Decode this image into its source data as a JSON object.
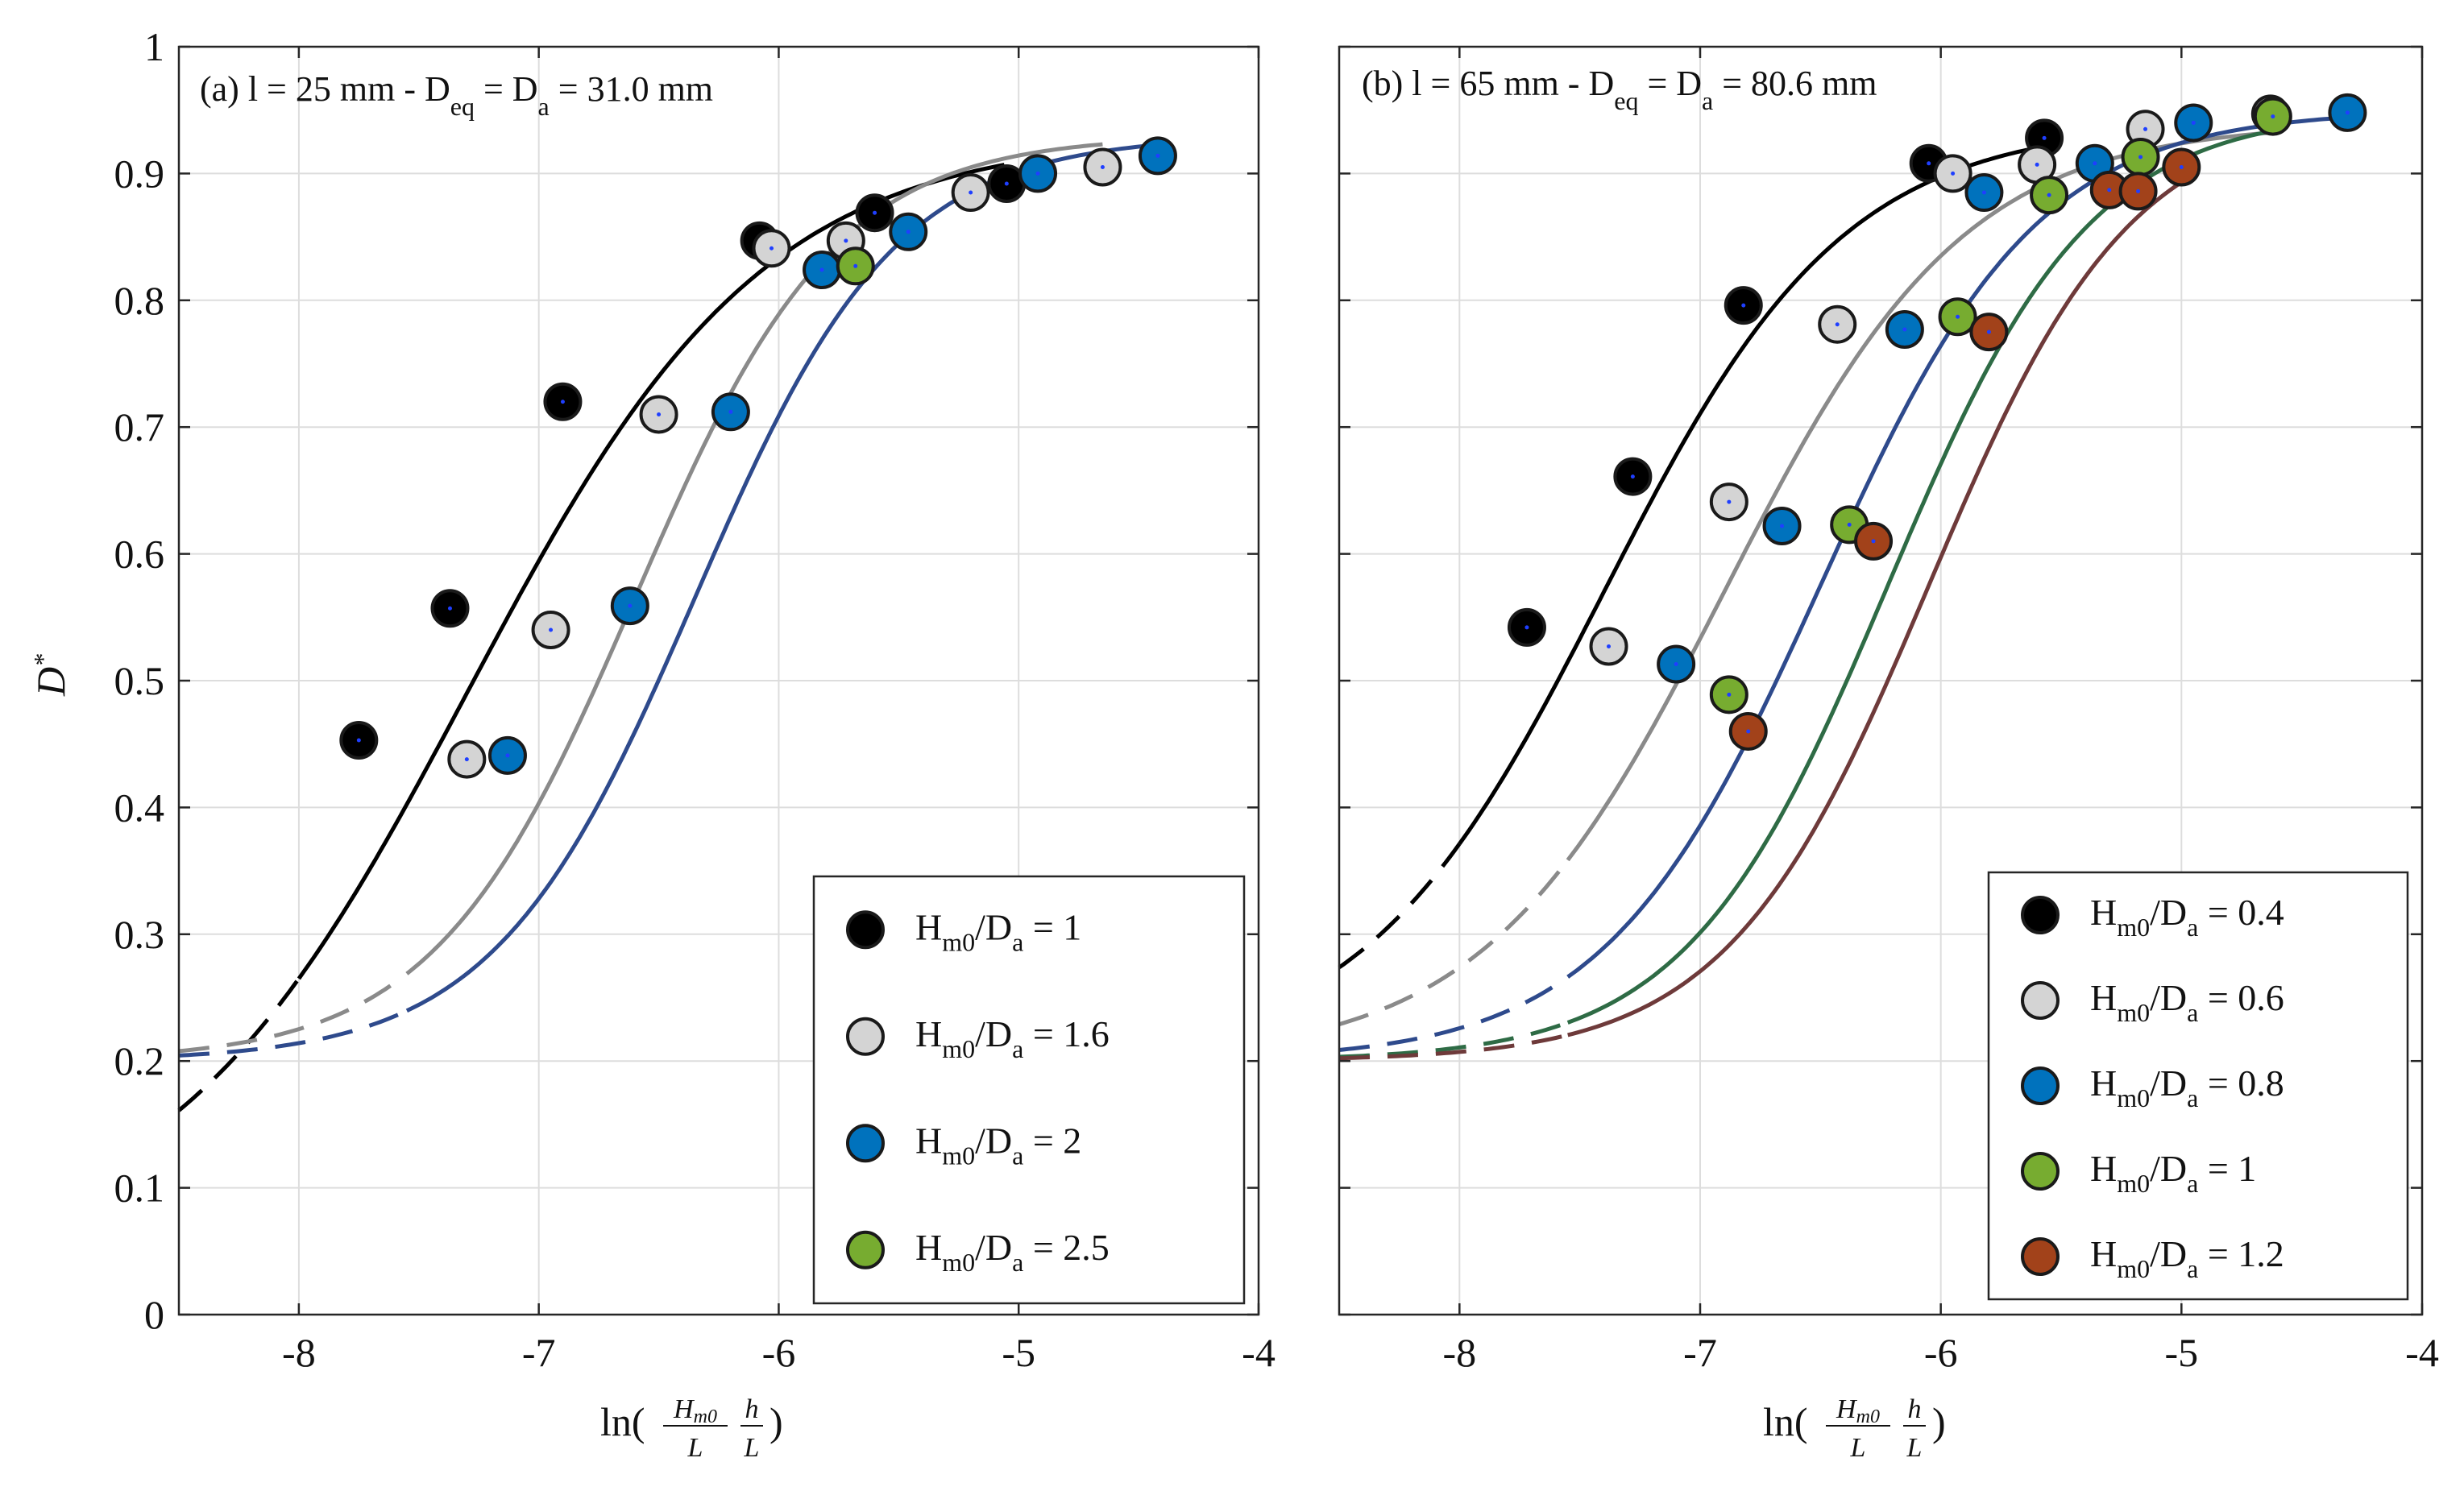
{
  "figure": {
    "ylabel": "D*",
    "xlabel": "ln(Hm0/L · h/L)"
  },
  "chart_data": [
    {
      "type": "scatter",
      "panel": "a",
      "title": "(a) l = 25 mm - Deq = Da = 31.0 mm",
      "title_parts": {
        "pre": "(a) l = 25 mm - D",
        "sub1": "eq",
        "mid": " = D",
        "sub2": "a",
        "post": " = 31.0 mm"
      },
      "xlabel": "ln(Hm0/L · h/L)",
      "ylabel": "D*",
      "xlim": [
        -8.5,
        -4
      ],
      "ylim": [
        0,
        1
      ],
      "xticks": [
        -8,
        -7,
        -6,
        -5,
        -4
      ],
      "xtick_labels": [
        "-8",
        "-7",
        "-6",
        "-5",
        "-4"
      ],
      "yticks": [
        0,
        0.1,
        0.2,
        0.3,
        0.4,
        0.5,
        0.6,
        0.7,
        0.8,
        0.9,
        1
      ],
      "ytick_labels": [
        "0",
        "0.1",
        "0.2",
        "0.3",
        "0.4",
        "0.5",
        "0.6",
        "0.7",
        "0.8",
        "0.9",
        "1"
      ],
      "grid": true,
      "legend_position": "bottom-right",
      "series": [
        {
          "name": "Hm0/Da = 1",
          "ratio": "1",
          "color": "#000000",
          "line_color": "#000000",
          "x": [
            -7.75,
            -7.37,
            -6.9,
            -6.08,
            -5.6,
            -5.05
          ],
          "y": [
            0.453,
            0.557,
            0.72,
            0.847,
            0.869,
            0.892
          ],
          "fit": {
            "lower": 0.05,
            "upper": 0.93,
            "center": -7.3,
            "width": 0.62,
            "solid_from": -8.0
          }
        },
        {
          "name": "Hm0/Da = 1.6",
          "ratio": "1.6",
          "color": "#d4d4d4",
          "line_color": "#8a8a8a",
          "x": [
            -7.3,
            -6.95,
            -6.5,
            -6.03,
            -5.72,
            -5.2,
            -4.65
          ],
          "y": [
            0.438,
            0.54,
            0.71,
            0.841,
            0.847,
            0.885,
            0.905
          ],
          "fit": {
            "lower": 0.2,
            "upper": 0.93,
            "center": -6.6,
            "width": 0.42,
            "solid_from": -7.55
          }
        },
        {
          "name": "Hm0/Da = 2",
          "ratio": "2",
          "color": "#0072bd",
          "line_color": "#2e4a8c",
          "x": [
            -7.13,
            -6.62,
            -6.2,
            -5.82,
            -5.46,
            -4.92,
            -4.42
          ],
          "y": [
            0.441,
            0.559,
            0.712,
            0.824,
            0.854,
            0.9,
            0.914
          ],
          "fit": {
            "lower": 0.2,
            "upper": 0.93,
            "center": -6.35,
            "width": 0.42,
            "solid_from": -7.55
          }
        },
        {
          "name": "Hm0/Da = 2.5",
          "ratio": "2.5",
          "color": "#77ac30",
          "line_color": "#77ac30",
          "x": [
            -5.68
          ],
          "y": [
            0.827
          ],
          "fit": null
        }
      ]
    },
    {
      "type": "scatter",
      "panel": "b",
      "title": "(b) l = 65 mm - Deq = Da = 80.6 mm",
      "title_parts": {
        "pre": "(b) l = 65 mm - D",
        "sub1": "eq",
        "mid": " = D",
        "sub2": "a",
        "post": " = 80.6 mm"
      },
      "xlabel": "ln(Hm0/L · h/L)",
      "ylabel": "",
      "xlim": [
        -8.5,
        -4
      ],
      "ylim": [
        0,
        1
      ],
      "xticks": [
        -8,
        -7,
        -6,
        -5,
        -4
      ],
      "xtick_labels": [
        "-8",
        "-7",
        "-6",
        "-5",
        "-4"
      ],
      "yticks": [
        0,
        0.1,
        0.2,
        0.3,
        0.4,
        0.5,
        0.6,
        0.7,
        0.8,
        0.9,
        1
      ],
      "ytick_labels": [],
      "grid": true,
      "legend_position": "bottom-right",
      "series": [
        {
          "name": "Hm0/Da = 0.4",
          "ratio": "0.4",
          "color": "#000000",
          "line_color": "#000000",
          "x": [
            -7.72,
            -7.28,
            -6.82,
            -6.05,
            -5.57
          ],
          "y": [
            0.542,
            0.661,
            0.796,
            0.908,
            0.928
          ],
          "fit": {
            "lower": 0.2,
            "upper": 0.94,
            "center": -7.4,
            "width": 0.5,
            "solid_from": -8.0
          }
        },
        {
          "name": "Hm0/Da = 0.6",
          "ratio": "0.6",
          "color": "#d4d4d4",
          "line_color": "#8a8a8a",
          "x": [
            -7.38,
            -6.88,
            -6.43,
            -5.95,
            -5.6,
            -5.15,
            -4.63
          ],
          "y": [
            0.527,
            0.641,
            0.781,
            0.9,
            0.907,
            0.935,
            0.947
          ],
          "fit": {
            "lower": 0.2,
            "upper": 0.94,
            "center": -6.9,
            "width": 0.5,
            "solid_from": -7.55
          }
        },
        {
          "name": "Hm0/Da = 0.8",
          "ratio": "0.8",
          "color": "#0072bd",
          "line_color": "#2e4a8c",
          "x": [
            -7.1,
            -6.66,
            -6.15,
            -5.82,
            -5.36,
            -4.95,
            -4.31
          ],
          "y": [
            0.513,
            0.622,
            0.777,
            0.885,
            0.908,
            0.94,
            0.948
          ],
          "fit": {
            "lower": 0.2,
            "upper": 0.95,
            "center": -6.5,
            "width": 0.45,
            "solid_from": -7.55
          }
        },
        {
          "name": "Hm0/Da = 1",
          "ratio": "1",
          "color": "#77ac30",
          "line_color": "#2e6b45",
          "x": [
            -6.88,
            -6.38,
            -5.93,
            -5.55,
            -5.17,
            -4.62
          ],
          "y": [
            0.489,
            0.623,
            0.787,
            0.883,
            0.913,
            0.945
          ],
          "fit": {
            "lower": 0.2,
            "upper": 0.95,
            "center": -6.22,
            "width": 0.42,
            "solid_from": -7.55
          }
        },
        {
          "name": "Hm0/Da = 1.2",
          "ratio": "1.2",
          "color": "#a2421a",
          "line_color": "#6e3a3a",
          "x": [
            -6.8,
            -6.28,
            -5.8,
            -5.3,
            -5.18,
            -5.0
          ],
          "y": [
            0.46,
            0.61,
            0.775,
            0.887,
            0.886,
            0.905
          ],
          "fit": {
            "lower": 0.2,
            "upper": 0.95,
            "center": -6.05,
            "width": 0.42,
            "solid_from": -7.55
          }
        }
      ]
    }
  ]
}
